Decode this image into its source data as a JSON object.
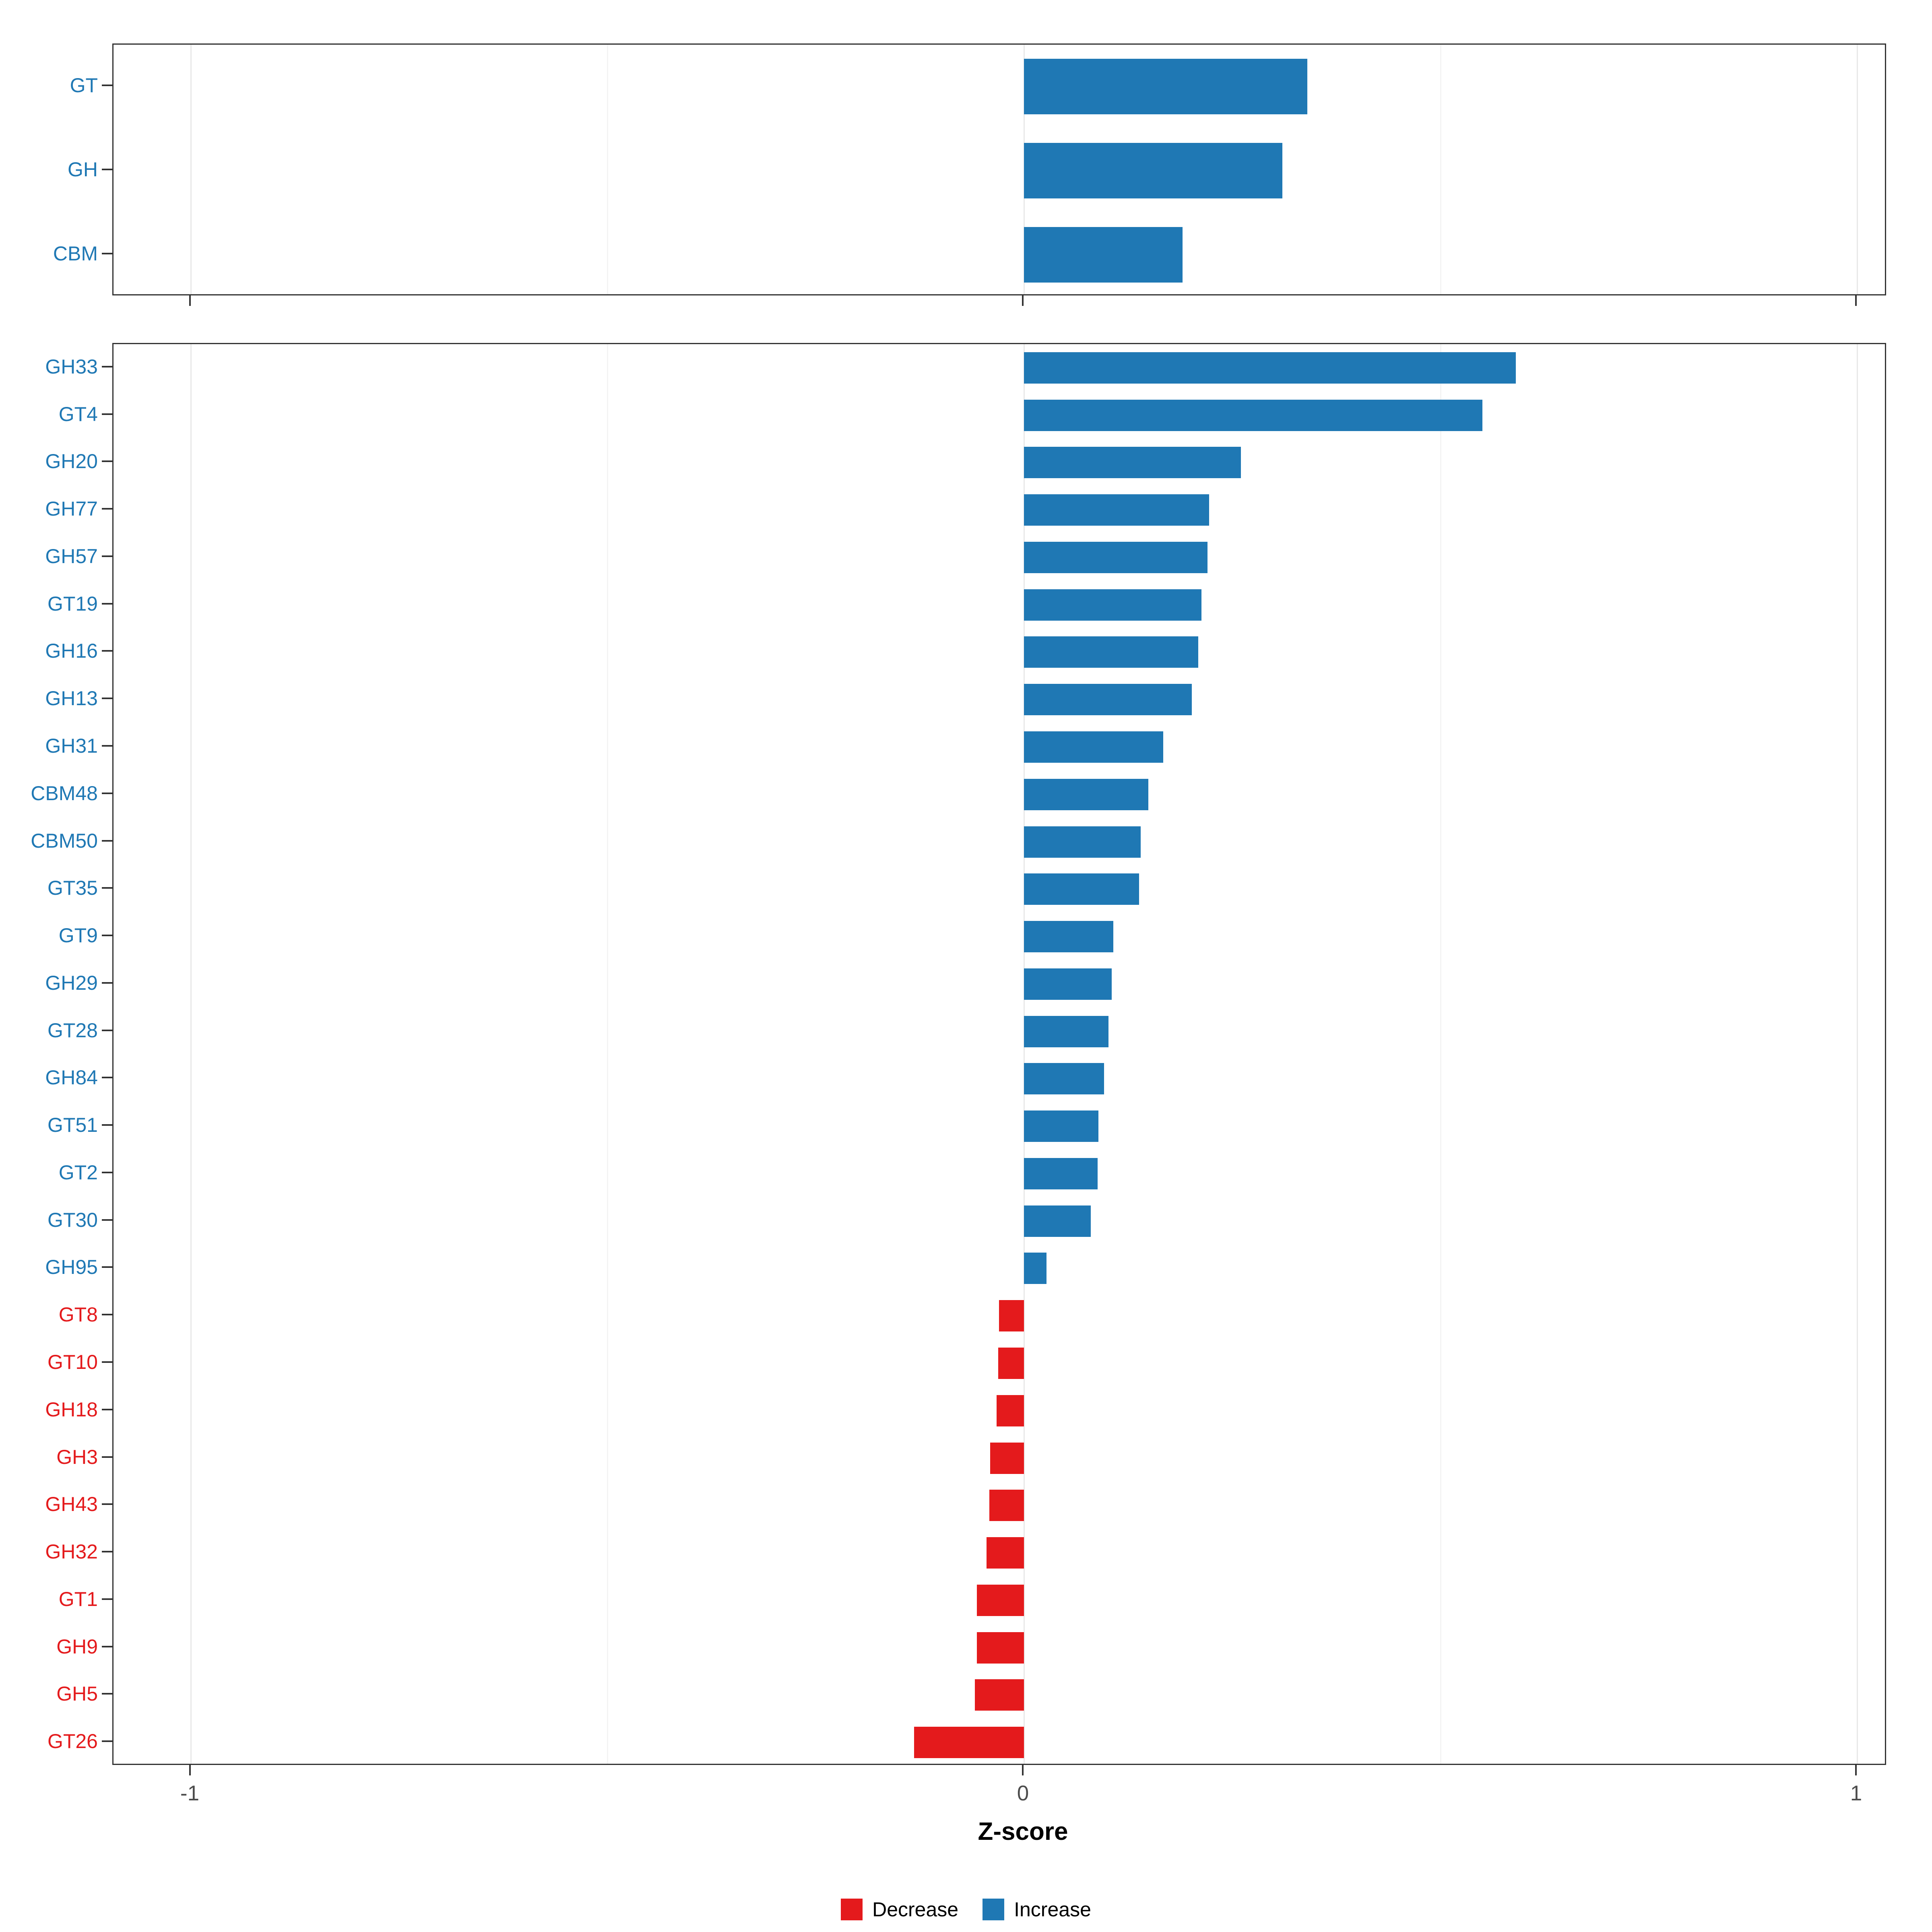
{
  "chart_data": {
    "type": "bar",
    "orientation": "horizontal",
    "title": "",
    "xlabel": "Z-score",
    "ylabel": "",
    "xlim": [
      -1.093,
      1.036
    ],
    "x_ticks": [
      -1,
      0,
      1
    ],
    "x_tick_labels": [
      "-1",
      "0",
      "1"
    ],
    "x_minor_ticks": [
      -0.5,
      0.5
    ],
    "grid": "on",
    "colors": {
      "increase": "#1F78B4",
      "decrease": "#E41A1C"
    },
    "legend": {
      "position": "bottom",
      "items": [
        {
          "label": "Decrease",
          "key": "decrease"
        },
        {
          "label": "Increase",
          "key": "increase"
        }
      ]
    },
    "panels": [
      {
        "name": "enzyme-classes",
        "bars": [
          {
            "label": "GT",
            "value": 0.34
          },
          {
            "label": "GH",
            "value": 0.31
          },
          {
            "label": "CBM",
            "value": 0.19
          }
        ]
      },
      {
        "name": "enzyme-families",
        "bars": [
          {
            "label": "GH33",
            "value": 0.59
          },
          {
            "label": "GT4",
            "value": 0.55
          },
          {
            "label": "GH20",
            "value": 0.26
          },
          {
            "label": "GH77",
            "value": 0.222
          },
          {
            "label": "GH57",
            "value": 0.22
          },
          {
            "label": "GT19",
            "value": 0.213
          },
          {
            "label": "GH16",
            "value": 0.209
          },
          {
            "label": "GH13",
            "value": 0.201
          },
          {
            "label": "GH31",
            "value": 0.167
          },
          {
            "label": "CBM48",
            "value": 0.149
          },
          {
            "label": "CBM50",
            "value": 0.14
          },
          {
            "label": "GT35",
            "value": 0.138
          },
          {
            "label": "GT9",
            "value": 0.107
          },
          {
            "label": "GH29",
            "value": 0.105
          },
          {
            "label": "GT28",
            "value": 0.101
          },
          {
            "label": "GH84",
            "value": 0.096
          },
          {
            "label": "GT51",
            "value": 0.089
          },
          {
            "label": "GT2",
            "value": 0.088
          },
          {
            "label": "GT30",
            "value": 0.08
          },
          {
            "label": "GH95",
            "value": 0.027
          },
          {
            "label": "GT8",
            "value": -0.03
          },
          {
            "label": "GT10",
            "value": -0.031
          },
          {
            "label": "GH18",
            "value": -0.033
          },
          {
            "label": "GH3",
            "value": -0.041
          },
          {
            "label": "GH43",
            "value": -0.042
          },
          {
            "label": "GH32",
            "value": -0.045
          },
          {
            "label": "GT1",
            "value": -0.057
          },
          {
            "label": "GH9",
            "value": -0.057
          },
          {
            "label": "GH5",
            "value": -0.059
          },
          {
            "label": "GT26",
            "value": -0.132
          }
        ]
      }
    ]
  }
}
